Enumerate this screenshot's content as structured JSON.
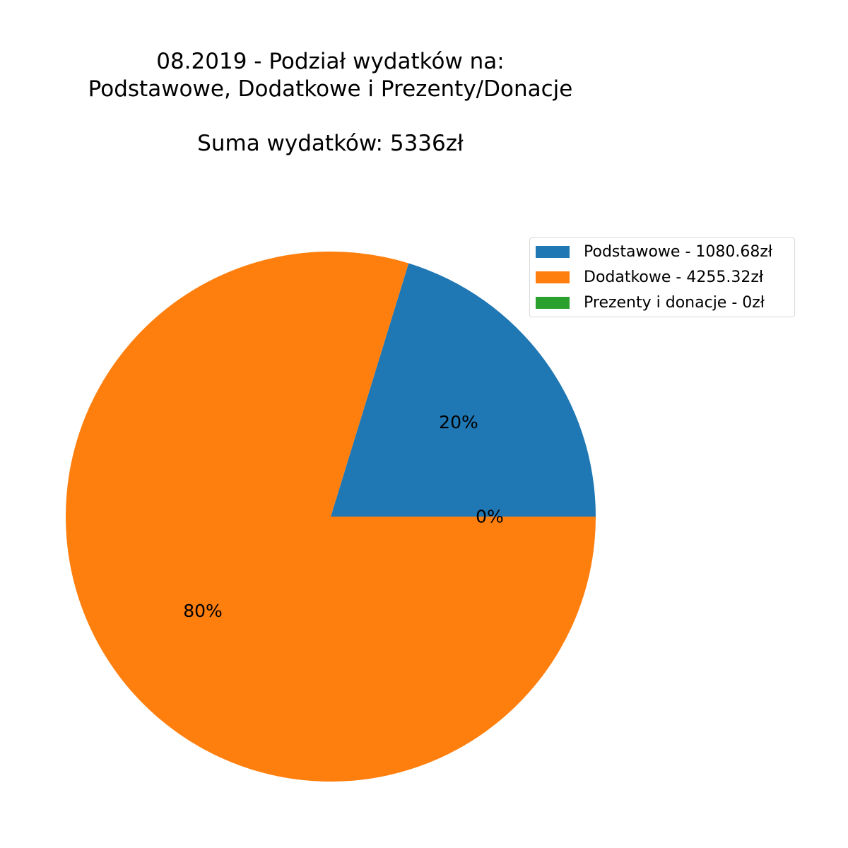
{
  "chart_data": {
    "type": "pie",
    "title": "08.2019 - Podział wydatków na:\nPodstawowe, Dodatkowe i Prezenty/Donacje\n\nSuma wydatków: 5336zł",
    "title_lines": [
      "08.2019 - Podział wydatków na:",
      "Podstawowe, Dodatkowe i Prezenty/Donacje",
      "Suma wydatków: 5336zł"
    ],
    "categories": [
      "Podstawowe",
      "Dodatkowe",
      "Prezenty i donacje"
    ],
    "values": [
      1080.68,
      4255.32,
      0
    ],
    "percent_labels": [
      "20%",
      "80%",
      "0%"
    ],
    "legend_entries": [
      "Podstawowe - 1080.68zł",
      "Dodatkowe - 4255.32zł",
      "Prezenty i donacje - 0zł"
    ],
    "colors": [
      "#1f77b4",
      "#ff7f0e",
      "#2ca02c"
    ],
    "start_angle_deg": 0,
    "direction": "counterclockwise",
    "legend_position": "top-right"
  }
}
